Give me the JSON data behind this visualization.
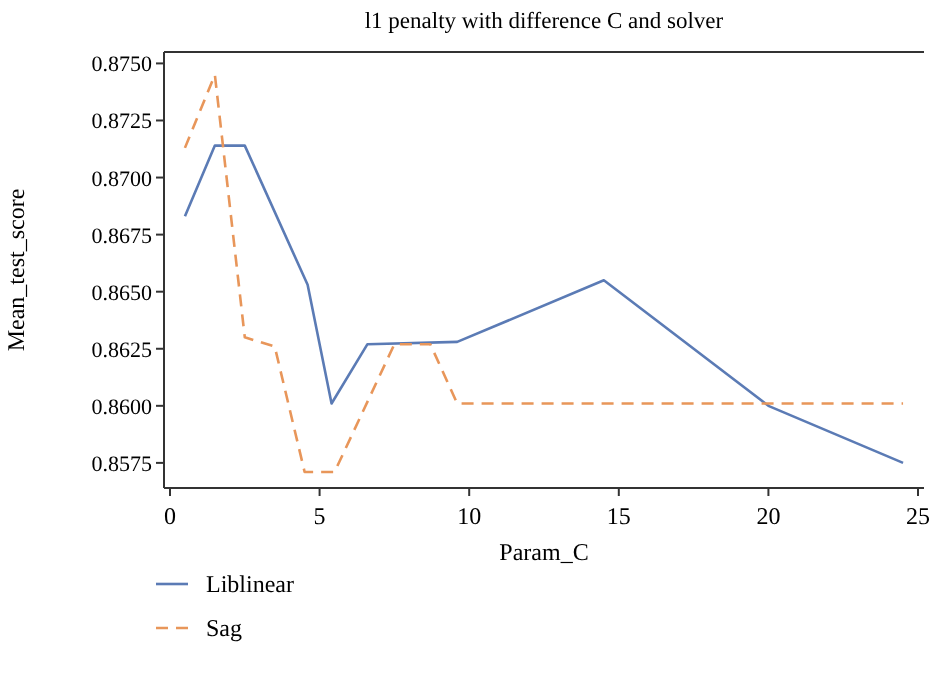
{
  "chart_data": {
    "type": "line",
    "title": "l1 penalty with difference C and solver",
    "xlabel": "Param_C",
    "ylabel": "Mean_test_score",
    "xlim": [
      -0.2,
      25.2
    ],
    "xticks": [
      0,
      5,
      10,
      15,
      20,
      25
    ],
    "ylim": [
      0.8564,
      0.8755
    ],
    "yticks": [
      {
        "value": 0.8575,
        "label": "0.8575"
      },
      {
        "value": 0.86,
        "label": "0.8600"
      },
      {
        "value": 0.8625,
        "label": "0.8625"
      },
      {
        "value": 0.865,
        "label": "0.8650"
      },
      {
        "value": 0.8675,
        "label": "0.8675"
      },
      {
        "value": 0.87,
        "label": "0.8700"
      },
      {
        "value": 0.8725,
        "label": "0.8725"
      },
      {
        "value": 0.875,
        "label": "0.8750"
      }
    ],
    "legend": "bottom left",
    "grid": false,
    "series": [
      {
        "name": "Liblinear",
        "color": "#5b7bb5",
        "line_style": "solid",
        "x": [
          0.5,
          1.5,
          2.5,
          4.6,
          5.4,
          6.6,
          9.6,
          14.5,
          20,
          24.5
        ],
        "values": [
          0.8683,
          0.8714,
          0.8714,
          0.8653,
          0.8601,
          0.8627,
          0.8628,
          0.8655,
          0.86,
          0.8575
        ]
      },
      {
        "name": "Sag",
        "color": "#e8965a",
        "line_style": "dashed",
        "x": [
          0.5,
          1.5,
          2.5,
          3.5,
          4.5,
          5.5,
          7.5,
          8.7,
          9.6,
          24.5
        ],
        "values": [
          0.8713,
          0.8745,
          0.863,
          0.8626,
          0.8571,
          0.8571,
          0.8627,
          0.8627,
          0.8601,
          0.8601
        ]
      }
    ]
  }
}
